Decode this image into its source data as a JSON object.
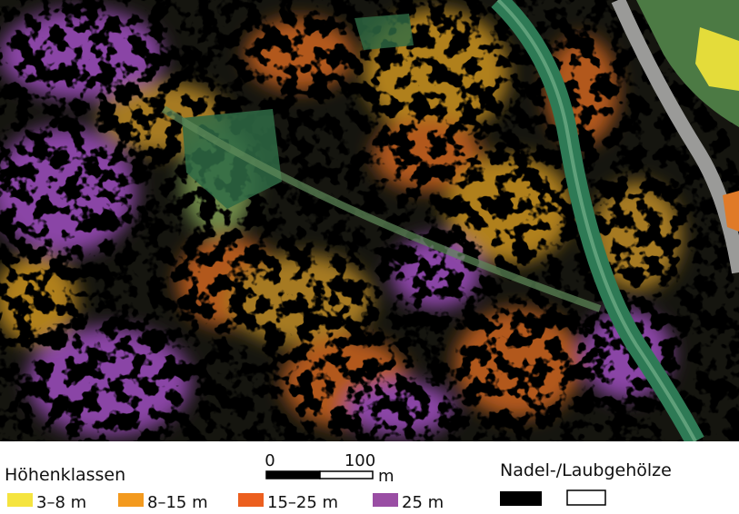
{
  "legend": {
    "title": "Höhenklassen",
    "items": [
      {
        "label": "3–8 m",
        "color": "#f5e43f"
      },
      {
        "label": "8–15 m",
        "color": "#f39a1f"
      },
      {
        "label": "15–25 m",
        "color": "#ec5f1f"
      },
      {
        "label": "25 m",
        "color": "#9a4ea4"
      }
    ]
  },
  "scale_bar": {
    "ticks": [
      0,
      100
    ],
    "unit": "m"
  },
  "type_legend": {
    "title": "Nadel-/Laubgehölze"
  }
}
